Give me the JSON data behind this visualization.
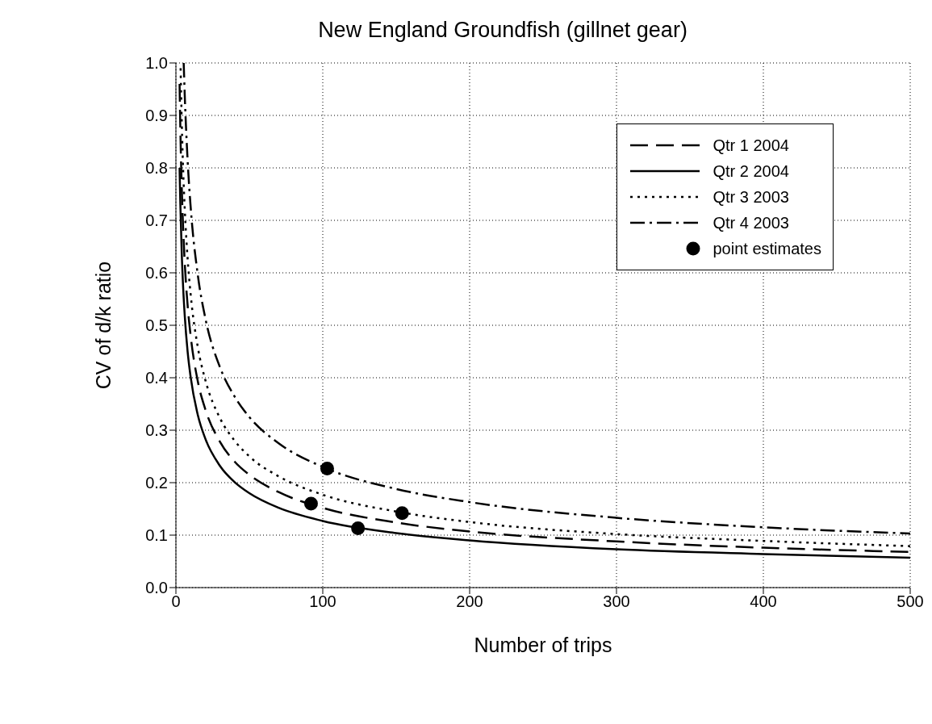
{
  "chart_data": {
    "type": "line",
    "title": "New England Groundfish (gillnet gear)",
    "xlabel": "Number of trips",
    "ylabel": "CV of d/k ratio",
    "xlim": [
      0,
      500
    ],
    "xticks": [
      0,
      100,
      200,
      300,
      400,
      500
    ],
    "ylim": [
      0,
      1
    ],
    "yticks": [
      {
        "value": 0,
        "label": "0.0"
      },
      0.1,
      0.2,
      0.3,
      0.4,
      0.5,
      0.6,
      0.7,
      0.8,
      0.9,
      {
        "value": 1,
        "label": "1.0"
      }
    ],
    "grid": true,
    "legend": "top right",
    "series": [
      {
        "name": "Qtr 1 2004",
        "color": "#000000",
        "line_style": "dashed",
        "marker": "none",
        "x": [
          2.5,
          3,
          4,
          5,
          6,
          8,
          10,
          15,
          20,
          30,
          40,
          50,
          70,
          100,
          150,
          200,
          300,
          400,
          500
        ],
        "values": [
          0.96,
          0.878,
          0.76,
          0.68,
          0.62,
          0.537,
          0.481,
          0.392,
          0.34,
          0.278,
          0.24,
          0.215,
          0.182,
          0.152,
          0.124,
          0.107,
          0.088,
          0.076,
          0.068
        ]
      },
      {
        "name": "Qtr 2 2004",
        "color": "#000000",
        "line_style": "solid",
        "marker": "none",
        "x": [
          2.5,
          3,
          4,
          5,
          6,
          8,
          10,
          15,
          20,
          30,
          40,
          50,
          70,
          100,
          150,
          200,
          300,
          400,
          500
        ],
        "values": [
          0.8,
          0.733,
          0.635,
          0.568,
          0.519,
          0.449,
          0.402,
          0.328,
          0.284,
          0.232,
          0.201,
          0.18,
          0.152,
          0.127,
          0.104,
          0.09,
          0.073,
          0.064,
          0.057
        ]
      },
      {
        "name": "Qtr 3 2003",
        "color": "#000000",
        "line_style": "dotted",
        "marker": "none",
        "x": [
          3.2,
          4,
          5,
          6,
          8,
          10,
          15,
          20,
          30,
          40,
          50,
          70,
          100,
          150,
          200,
          300,
          400,
          500
        ],
        "values": [
          0.99,
          0.885,
          0.79,
          0.723,
          0.626,
          0.56,
          0.457,
          0.396,
          0.323,
          0.28,
          0.25,
          0.212,
          0.177,
          0.145,
          0.125,
          0.102,
          0.089,
          0.079
        ]
      },
      {
        "name": "Qtr 4 2003",
        "color": "#000000",
        "line_style": "dashdot",
        "marker": "none",
        "x": [
          5.3,
          6,
          8,
          10,
          15,
          20,
          30,
          40,
          50,
          70,
          100,
          150,
          200,
          300,
          400,
          500
        ],
        "values": [
          1.0,
          0.94,
          0.813,
          0.727,
          0.594,
          0.514,
          0.42,
          0.364,
          0.325,
          0.275,
          0.23,
          0.188,
          0.163,
          0.133,
          0.115,
          0.103
        ]
      },
      {
        "name": "point estimates",
        "type": "scatter",
        "color": "#000000",
        "marker": "circle",
        "x": [
          92,
          103,
          124,
          154
        ],
        "values": [
          0.16,
          0.227,
          0.113,
          0.142
        ]
      }
    ]
  }
}
